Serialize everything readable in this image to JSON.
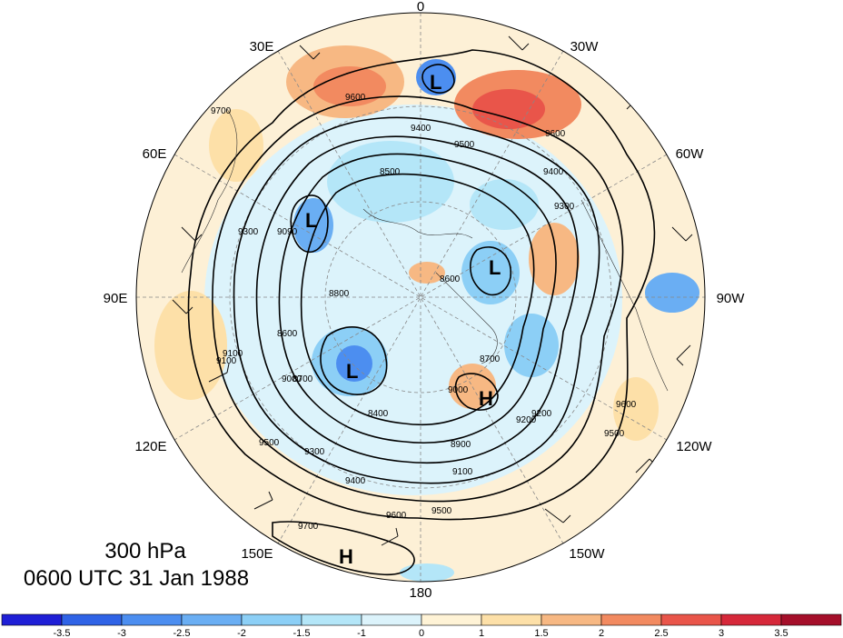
{
  "map": {
    "longitude_labels": [
      "0",
      "30W",
      "60W",
      "90W",
      "120W",
      "150W",
      "180",
      "150E",
      "120E",
      "90E",
      "60E",
      "30E"
    ],
    "level_text": "300 hPa",
    "time_text": "0600 UTC 31 Jan 1988",
    "contour_labels": [
      "9600",
      "9500",
      "9400",
      "9300",
      "9200",
      "9100",
      "9000",
      "8900",
      "8800",
      "8700",
      "8600",
      "8500",
      "8400",
      "9700",
      "9600",
      "9500",
      "9300",
      "9100",
      "8600",
      "9000",
      "9200",
      "9400",
      "9500",
      "9600",
      "9700",
      "9600",
      "9500",
      "9400",
      "9300",
      "9100",
      "9090",
      "8700"
    ],
    "pressure_centers": [
      {
        "type": "L"
      },
      {
        "type": "L"
      },
      {
        "type": "L"
      },
      {
        "type": "L"
      },
      {
        "type": "H"
      },
      {
        "type": "H"
      }
    ],
    "colorbar": {
      "ticks": [
        "-3.5",
        "-3",
        "-2.5",
        "-2",
        "-1.5",
        "-1",
        "0",
        "1",
        "1.5",
        "2",
        "2.5",
        "3",
        "3.5"
      ],
      "colors": [
        "#1f1fd6",
        "#2f63e6",
        "#4c8ef0",
        "#6aaef3",
        "#8ccff6",
        "#b4e6f8",
        "#dcf3fb",
        "#fff3d6",
        "#fde0a8",
        "#f7b883",
        "#f28a60",
        "#e9554a",
        "#d6283a",
        "#a50f2a"
      ]
    }
  }
}
